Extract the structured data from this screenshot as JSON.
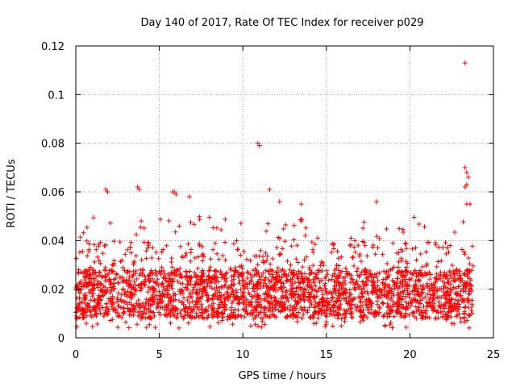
{
  "chart_data": {
    "type": "scatter",
    "title": "Day 140 of 2017, Rate Of TEC Index for receiver p029",
    "xlabel": "GPS time / hours",
    "ylabel": "ROTI / TECUs",
    "xlim": [
      0,
      25
    ],
    "ylim": [
      0,
      0.12
    ],
    "xticks": [
      0,
      5,
      10,
      15,
      20,
      25
    ],
    "xtick_labels": [
      "0",
      "5",
      "10",
      "15",
      "20",
      "25"
    ],
    "yticks": [
      0,
      0.02,
      0.04,
      0.06,
      0.08,
      0.1,
      0.12
    ],
    "ytick_labels": [
      "0",
      "0.02",
      "0.04",
      "0.06",
      "0.08",
      "0.1",
      "0.12"
    ],
    "grid": true,
    "marker": "+",
    "marker_color": "#ff0000",
    "series": [
      {
        "name": "ROTI",
        "description": "dense band of ROTI values across 0-23.8 h",
        "band": {
          "x_start": 0.0,
          "x_end": 23.8,
          "typical_low": 0.008,
          "typical_high": 0.028,
          "spread_max": 0.04
        },
        "outliers": [
          {
            "x": 1.8,
            "y": 0.061
          },
          {
            "x": 1.9,
            "y": 0.06
          },
          {
            "x": 3.7,
            "y": 0.062
          },
          {
            "x": 3.8,
            "y": 0.061
          },
          {
            "x": 5.8,
            "y": 0.06
          },
          {
            "x": 5.9,
            "y": 0.06
          },
          {
            "x": 6.0,
            "y": 0.059
          },
          {
            "x": 6.8,
            "y": 0.058
          },
          {
            "x": 10.9,
            "y": 0.08
          },
          {
            "x": 11.0,
            "y": 0.079
          },
          {
            "x": 11.6,
            "y": 0.061
          },
          {
            "x": 12.2,
            "y": 0.056
          },
          {
            "x": 13.5,
            "y": 0.055
          },
          {
            "x": 18.0,
            "y": 0.056
          },
          {
            "x": 23.3,
            "y": 0.113
          },
          {
            "x": 23.3,
            "y": 0.07
          },
          {
            "x": 23.4,
            "y": 0.068
          },
          {
            "x": 23.5,
            "y": 0.066
          },
          {
            "x": 23.4,
            "y": 0.063
          },
          {
            "x": 23.3,
            "y": 0.062
          },
          {
            "x": 23.4,
            "y": 0.055
          },
          {
            "x": 23.6,
            "y": 0.055
          }
        ],
        "approximate": true
      }
    ]
  }
}
